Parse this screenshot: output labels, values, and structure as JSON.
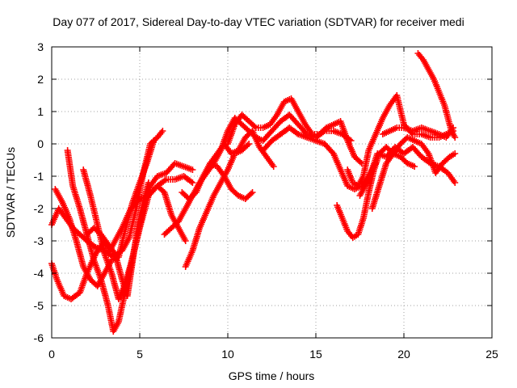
{
  "chart_data": {
    "type": "scatter",
    "title": "Day 077 of 2017, Sidereal Day-to-day VTEC variation (SDTVAR) for receiver medi",
    "xlabel": "GPS time / hours",
    "ylabel": "SDTVAR / TECUs",
    "xlim": [
      0,
      25
    ],
    "ylim": [
      -6,
      3
    ],
    "xticks": [
      "0",
      "5",
      "10",
      "15",
      "20",
      "25"
    ],
    "yticks": [
      "-6",
      "-5",
      "-4",
      "-3",
      "-2",
      "-1",
      "0",
      "1",
      "2",
      "3"
    ],
    "grid": true,
    "marker": "+",
    "color": "#ff0000",
    "series": [
      {
        "x": [
          0.0,
          0.4,
          0.8,
          1.2,
          1.6,
          2.0,
          2.5,
          3.0,
          3.5,
          4.0,
          4.4,
          4.8,
          5.2,
          5.6,
          6.0,
          6.3
        ],
        "y": [
          -2.5,
          -2.0,
          -2.3,
          -2.6,
          -2.8,
          -3.0,
          -3.2,
          -3.3,
          -3.5,
          -3.3,
          -2.9,
          -2.0,
          -0.9,
          0.0,
          0.2,
          0.4
        ]
      },
      {
        "x": [
          0.0,
          0.3,
          0.7,
          1.1,
          1.6,
          2.0,
          2.5,
          3.0,
          3.3,
          3.6,
          4.0,
          4.5,
          5.0,
          5.5,
          6.0,
          6.5,
          7.0,
          7.5,
          8.0
        ],
        "y": [
          -3.7,
          -4.2,
          -4.7,
          -4.8,
          -4.6,
          -4.0,
          -3.4,
          -3.0,
          -3.3,
          -3.0,
          -2.6,
          -2.0,
          -1.7,
          -1.6,
          -1.3,
          -1.1,
          -1.1,
          -1.0,
          -1.2
        ]
      },
      {
        "x": [
          0.9,
          1.2,
          1.6,
          2.0,
          2.4,
          2.8,
          3.2,
          3.5,
          3.8,
          4.2,
          4.6,
          5.0,
          5.3,
          5.6,
          6.0,
          6.5,
          7.0,
          7.5,
          8.0
        ],
        "y": [
          -0.2,
          -1.3,
          -2.0,
          -2.8,
          -3.6,
          -4.2,
          -5.0,
          -5.8,
          -5.5,
          -4.5,
          -3.5,
          -2.5,
          -1.8,
          -1.3,
          -1.0,
          -0.9,
          -0.6,
          -0.7,
          -0.8
        ]
      },
      {
        "x": [
          0.2,
          0.6,
          1.0,
          1.4,
          1.8,
          2.2,
          2.6,
          3.0,
          3.4,
          3.8,
          4.2,
          4.6,
          5.0,
          5.4,
          5.8
        ],
        "y": [
          -1.4,
          -1.8,
          -2.3,
          -3.0,
          -3.8,
          -4.2,
          -4.4,
          -4.0,
          -3.6,
          -3.5,
          -2.6,
          -1.8,
          -1.2,
          -0.6,
          0.1
        ]
      },
      {
        "x": [
          2.0,
          2.4,
          2.8,
          3.2,
          3.6,
          4.0,
          4.3,
          4.6,
          4.9,
          5.2,
          5.5
        ],
        "y": [
          -2.8,
          -2.6,
          -2.8,
          -3.1,
          -3.4,
          -4.2,
          -4.7,
          -3.6,
          -2.5,
          -1.8,
          -1.2
        ]
      },
      {
        "x": [
          1.8,
          2.2,
          2.6,
          3.0,
          3.4,
          3.8,
          4.2,
          4.6,
          5.0,
          5.5,
          6.0,
          6.4,
          6.8,
          7.2,
          7.6
        ],
        "y": [
          -0.8,
          -1.6,
          -2.5,
          -3.4,
          -4.0,
          -4.8,
          -4.3,
          -3.5,
          -2.6,
          -1.6,
          -1.3,
          -1.5,
          -2.2,
          -2.6,
          -3.0
        ]
      },
      {
        "x": [
          6.4,
          6.8,
          7.2,
          7.6,
          8.0,
          8.4,
          8.8,
          9.2,
          9.6,
          10.0,
          10.4,
          10.8,
          11.2,
          11.6,
          12.0,
          12.5,
          13.0,
          13.5,
          14.0,
          14.5,
          15.0,
          15.5,
          16.0,
          16.5,
          17.0
        ],
        "y": [
          -2.8,
          -2.6,
          -2.4,
          -2.0,
          -1.6,
          -1.2,
          -0.9,
          -0.6,
          -0.2,
          0.4,
          0.8,
          0.6,
          0.4,
          0.2,
          0.1,
          0.4,
          0.7,
          0.9,
          0.6,
          0.3,
          0.2,
          0.4,
          0.4,
          0.3,
          0.1
        ]
      },
      {
        "x": [
          7.6,
          8.0,
          8.4,
          8.8,
          9.2,
          9.6,
          10.0,
          10.4,
          10.8,
          11.2
        ],
        "y": [
          -3.8,
          -3.3,
          -2.6,
          -2.1,
          -1.6,
          -1.2,
          -0.8,
          -0.3,
          -0.2,
          0.0
        ]
      },
      {
        "x": [
          7.4,
          7.8,
          8.2,
          8.6,
          9.0,
          9.4,
          9.8,
          10.2,
          10.6,
          11.0,
          11.4
        ],
        "y": [
          -1.5,
          -1.7,
          -1.5,
          -1.0,
          -0.6,
          -0.7,
          -1.0,
          -1.4,
          -1.6,
          -1.7,
          -1.5
        ]
      },
      {
        "x": [
          9.0,
          9.4,
          9.8,
          10.2,
          10.6,
          11.0,
          11.4,
          11.8,
          12.2,
          12.6
        ],
        "y": [
          -0.6,
          -0.3,
          0.0,
          -0.3,
          -0.2,
          0.2,
          0.4,
          -0.1,
          -0.4,
          -0.7
        ]
      },
      {
        "x": [
          10.0,
          10.4,
          10.8,
          11.2,
          11.6,
          12.0,
          12.4,
          12.8,
          13.2,
          13.6,
          14.0,
          14.4,
          14.8,
          15.2,
          15.6,
          16.0,
          16.4,
          16.8,
          17.2,
          17.6
        ],
        "y": [
          0.0,
          0.6,
          0.9,
          0.7,
          0.5,
          0.5,
          0.6,
          0.9,
          1.3,
          1.4,
          1.0,
          0.6,
          0.3,
          0.3,
          0.5,
          0.6,
          0.7,
          0.1,
          -0.4,
          -0.6
        ]
      },
      {
        "x": [
          12.0,
          12.5,
          13.0,
          13.5,
          14.0,
          14.5,
          15.0,
          15.5,
          16.0,
          16.4,
          16.8,
          17.2,
          17.6,
          18.0,
          18.4
        ],
        "y": [
          -0.2,
          0.1,
          0.3,
          0.5,
          0.3,
          0.2,
          0.1,
          0.0,
          -0.3,
          -0.8,
          -1.3,
          -1.4,
          -1.3,
          -1.0,
          -0.6
        ]
      },
      {
        "x": [
          16.2,
          16.5,
          16.8,
          17.1,
          17.4,
          17.7,
          18.0,
          18.3,
          18.6,
          19.0,
          19.4,
          19.8,
          20.2,
          20.6
        ],
        "y": [
          -1.9,
          -2.3,
          -2.7,
          -2.9,
          -2.8,
          -2.3,
          -1.5,
          -0.8,
          -0.3,
          -0.1,
          -0.3,
          -0.4,
          -0.6,
          -0.7
        ]
      },
      {
        "x": [
          16.8,
          17.1,
          17.4,
          17.7,
          18.0,
          18.4,
          18.8,
          19.2,
          19.6,
          20.0,
          20.5,
          21.0,
          21.5,
          22.0,
          22.4,
          22.8
        ],
        "y": [
          -0.8,
          -1.2,
          -1.3,
          -1.0,
          -0.2,
          0.3,
          0.8,
          1.2,
          1.5,
          0.6,
          0.3,
          0.3,
          0.2,
          0.2,
          0.3,
          0.4
        ]
      },
      {
        "x": [
          17.5,
          18.0,
          18.5,
          19.0,
          19.5,
          20.0,
          20.5,
          21.0,
          21.5,
          22.0,
          22.5,
          22.9
        ],
        "y": [
          -1.6,
          -1.1,
          -0.3,
          -0.4,
          -0.1,
          -0.3,
          -0.1,
          -0.4,
          -0.6,
          -0.7,
          -0.9,
          -1.2
        ]
      },
      {
        "x": [
          18.2,
          18.6,
          19.0,
          19.4,
          19.8,
          20.2,
          20.6,
          21.0,
          21.4,
          21.8,
          22.2,
          22.6,
          22.9
        ],
        "y": [
          -2.0,
          -1.3,
          -0.6,
          -0.3,
          0.0,
          0.2,
          0.1,
          0.0,
          -0.3,
          -0.9,
          -0.6,
          -0.4,
          -0.3
        ]
      },
      {
        "x": [
          18.8,
          19.2,
          19.6,
          20.0,
          20.5,
          21.0,
          21.5,
          22.0,
          22.4,
          22.8
        ],
        "y": [
          0.3,
          0.4,
          0.5,
          0.5,
          0.4,
          0.5,
          0.4,
          0.3,
          0.2,
          0.5
        ]
      },
      {
        "x": [
          20.8,
          21.1,
          21.4,
          21.7,
          22.0,
          22.3,
          22.5,
          22.7,
          22.9
        ],
        "y": [
          2.8,
          2.6,
          2.3,
          2.0,
          1.6,
          1.2,
          0.8,
          0.4,
          0.2
        ]
      }
    ]
  }
}
